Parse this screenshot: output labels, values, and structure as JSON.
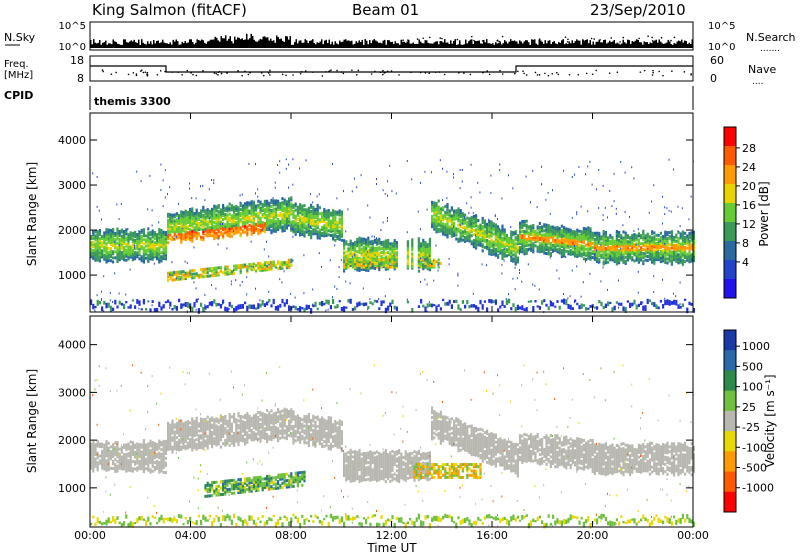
{
  "header": {
    "title": "King Salmon (fitACF)",
    "beam": "Beam 01",
    "date": "23/Sep/2010"
  },
  "strip": {
    "nsky_label": "N.Sky",
    "nsky_ticks": [
      "10^5",
      "10^0"
    ],
    "nsearch_label": "N.Search",
    "nsearch_ticks": [
      "10^5",
      "10^0"
    ],
    "freq_label_1": "Freq.",
    "freq_label_2": "[MHz]",
    "freq_ticks": [
      "18",
      "8"
    ],
    "nave_label": "Nave",
    "nave_ticks": [
      "60",
      "0"
    ],
    "cpid_label": "CPID",
    "cpid_value": "themis 3300"
  },
  "chart_data": [
    {
      "type": "heatmap",
      "title": "",
      "xlabel": "",
      "ylabel": "Slant Range [km]",
      "xlim": [
        "00:00",
        "24:00"
      ],
      "ylim": [
        180,
        4600
      ],
      "y_ticks": [
        "1000",
        "2000",
        "3000",
        "4000"
      ],
      "colorbar": {
        "label": "Power [dB]",
        "ticks": [
          "28",
          "24",
          "20",
          "16",
          "12",
          "8",
          "4"
        ],
        "colors": [
          "#ff0000",
          "#ff5a00",
          "#ff9a00",
          "#e8d200",
          "#66cc33",
          "#3a9a5a",
          "#2a6aa0",
          "#2244cc",
          "#2211ee"
        ]
      }
    },
    {
      "type": "heatmap",
      "title": "",
      "xlabel": "Time UT",
      "ylabel": "Slant Range [km]",
      "xlim": [
        "00:00",
        "24:00"
      ],
      "ylim": [
        180,
        4600
      ],
      "x_ticks": [
        "00:00",
        "04:00",
        "08:00",
        "12:00",
        "16:00",
        "20:00",
        "00:00"
      ],
      "y_ticks": [
        "1000",
        "2000",
        "3000",
        "4000"
      ],
      "colorbar": {
        "label": "Velocity [m s⁻¹]",
        "ticks": [
          "1000",
          "500",
          "100",
          "25",
          "-25",
          "-100",
          "-500",
          "-1000"
        ],
        "colors": [
          "#1a3aa8",
          "#2a6aaa",
          "#2e8a4a",
          "#70c040",
          "#b8b8b0",
          "#e8d800",
          "#ff9a00",
          "#ff5a00",
          "#ff0000"
        ]
      }
    }
  ]
}
